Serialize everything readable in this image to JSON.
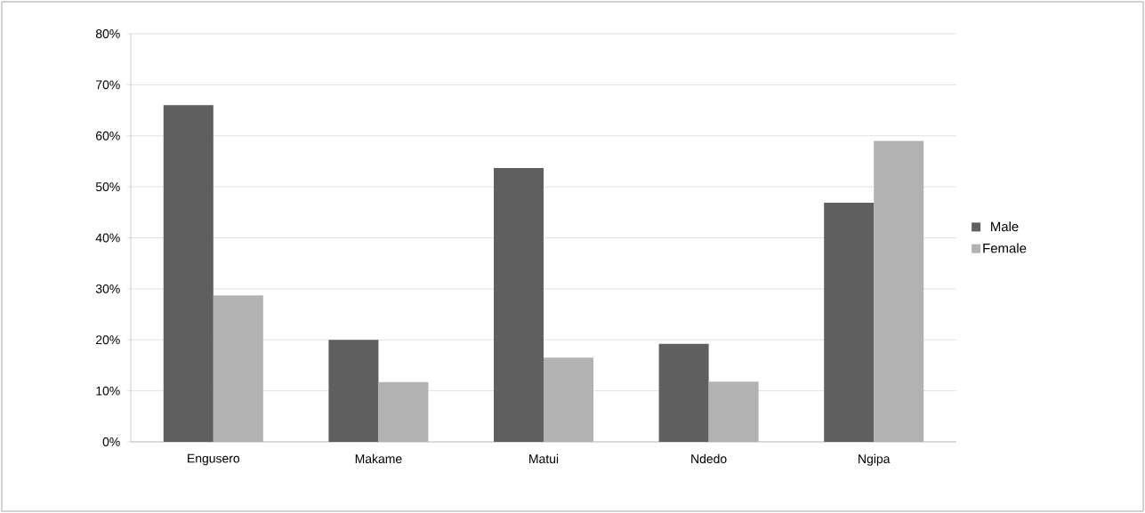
{
  "chart_data": {
    "type": "bar",
    "categories": [
      "Engusero",
      "Makame",
      "Matui",
      "Ndedo",
      "Ngipa"
    ],
    "series": [
      {
        "name": "Male",
        "color": "#5f5f5f",
        "values": [
          66,
          20,
          53.7,
          19.2,
          46.9
        ]
      },
      {
        "name": "Female",
        "color": "#b2b2b2",
        "values": [
          28.7,
          11.7,
          16.5,
          11.8,
          59
        ]
      }
    ],
    "ylim": [
      0,
      80
    ],
    "yticks": [
      {
        "value": 0,
        "label": "0%"
      },
      {
        "value": 10,
        "label": "10%"
      },
      {
        "value": 20,
        "label": "20%"
      },
      {
        "value": 30,
        "label": "30%"
      },
      {
        "value": 40,
        "label": "40%"
      },
      {
        "value": 50,
        "label": "50%"
      },
      {
        "value": 60,
        "label": "60%"
      },
      {
        "value": 70,
        "label": "70%"
      },
      {
        "value": 80,
        "label": "80%"
      }
    ],
    "grid": "y",
    "legend": "right"
  }
}
